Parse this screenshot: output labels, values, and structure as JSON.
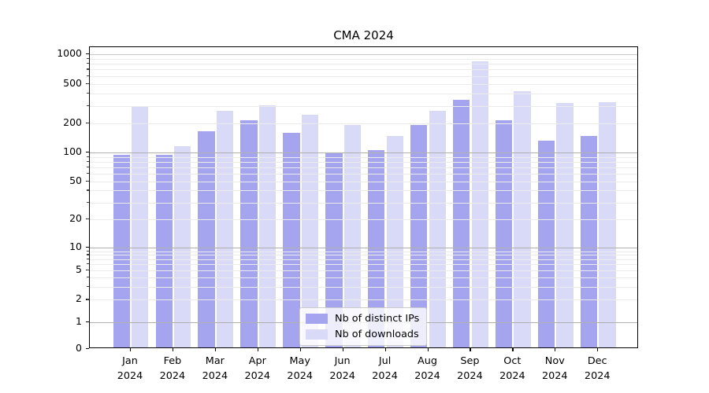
{
  "chart_data": {
    "type": "bar",
    "title": "CMA 2024",
    "categories": [
      "Jan",
      "Feb",
      "Mar",
      "Apr",
      "May",
      "Jun",
      "Jul",
      "Aug",
      "Sep",
      "Oct",
      "Nov",
      "Dec"
    ],
    "year_label": "2024",
    "series": [
      {
        "name": "Nb of distinct IPs",
        "color": "#a5a5ef",
        "values": [
          95,
          95,
          165,
          213,
          158,
          98,
          107,
          192,
          343,
          213,
          133,
          148
        ]
      },
      {
        "name": "Nb of downloads",
        "color": "#d9d9f8",
        "values": [
          295,
          117,
          266,
          303,
          243,
          193,
          148,
          266,
          840,
          423,
          320,
          327
        ]
      }
    ],
    "xlabel": "",
    "ylabel": "",
    "y_scale": "symlog",
    "ylim": [
      0,
      1000
    ],
    "y_ticks": [
      {
        "label": "1000",
        "value": 1000
      },
      {
        "label": "500",
        "value": 500
      },
      {
        "label": "200",
        "value": 200
      },
      {
        "label": "100",
        "value": 100
      },
      {
        "label": "50",
        "value": 50
      },
      {
        "label": "20",
        "value": 20
      },
      {
        "label": "10",
        "value": 10
      },
      {
        "label": "5",
        "value": 5
      },
      {
        "label": "2",
        "value": 2
      },
      {
        "label": "1",
        "value": 1
      },
      {
        "label": "0",
        "value": 0
      }
    ],
    "grid": "both",
    "grid_major_color": "#b0b0b0",
    "grid_minor_color": "#ebebeb",
    "legend_position": "lower center"
  }
}
